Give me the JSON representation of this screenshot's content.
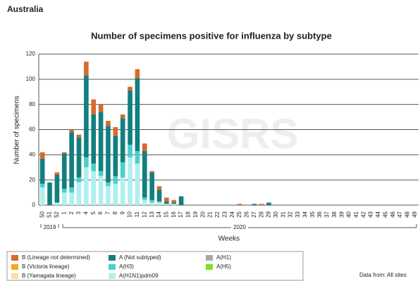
{
  "page_title": "Australia",
  "source_note": "Data from: All sites",
  "watermark": "GISRS",
  "chart_data": {
    "type": "stacked-bar",
    "title": "Number of specimens positive for influenza by subtype",
    "x_label": "Weeks",
    "y_label": "Number of specimens",
    "year_labels": [
      "2019",
      "2020"
    ],
    "categories": [
      "50",
      "51",
      "52",
      "1",
      "2",
      "3",
      "4",
      "5",
      "6",
      "7",
      "8",
      "9",
      "10",
      "11",
      "12",
      "13",
      "14",
      "15",
      "16",
      "17",
      "18",
      "19",
      "20",
      "21",
      "22",
      "23",
      "24",
      "25",
      "26",
      "27",
      "28",
      "29",
      "30",
      "31",
      "32",
      "33",
      "34",
      "35",
      "36",
      "37",
      "38",
      "39",
      "40",
      "41",
      "42",
      "43",
      "44",
      "45",
      "46",
      "47",
      "48",
      "49"
    ],
    "ylim": [
      0,
      120
    ],
    "yticks": [
      0,
      20,
      40,
      60,
      80,
      100,
      120
    ],
    "grid": true,
    "series": [
      {
        "name": "B (Lineage not determined)",
        "color": "#d9692a",
        "values": [
          5,
          0,
          2,
          1,
          2,
          2,
          11,
          12,
          6,
          4,
          7,
          3,
          3,
          7,
          6,
          1,
          3,
          3,
          2,
          0,
          0,
          0,
          0,
          0,
          0,
          0,
          0,
          1,
          0,
          0,
          1,
          0,
          0,
          0,
          0,
          0,
          0,
          0,
          0,
          0,
          0,
          0,
          0,
          0,
          0,
          0,
          0,
          0,
          0,
          0,
          0,
          0
        ]
      },
      {
        "name": "B (Victoria lineage)",
        "color": "#f5a81c",
        "values": [
          0,
          0,
          0,
          0,
          0,
          0,
          0,
          0,
          0,
          0,
          0,
          0,
          0,
          0,
          0,
          0,
          0,
          0,
          0,
          0,
          0,
          0,
          0,
          0,
          0,
          0,
          0,
          0,
          0,
          0,
          0,
          0,
          0,
          0,
          0,
          0,
          0,
          0,
          0,
          0,
          0,
          0,
          0,
          0,
          0,
          0,
          0,
          0,
          0,
          0,
          0,
          0
        ]
      },
      {
        "name": "B (Yamagata lineage)",
        "color": "#fddcaa",
        "values": [
          0,
          0,
          0,
          0,
          0,
          0,
          0,
          0,
          0,
          0,
          0,
          0,
          0,
          0,
          0,
          0,
          0,
          0,
          0,
          0,
          0,
          0,
          0,
          0,
          0,
          0,
          0,
          0,
          0,
          0,
          0,
          0,
          0,
          0,
          0,
          0,
          0,
          0,
          0,
          0,
          0,
          0,
          0,
          0,
          0,
          0,
          0,
          0,
          0,
          0,
          0,
          0
        ]
      },
      {
        "name": "A (Not subtyped)",
        "color": "#127f7f",
        "values": [
          20,
          18,
          22,
          28,
          44,
          32,
          65,
          39,
          47,
          45,
          32,
          35,
          43,
          58,
          37,
          22,
          9,
          2,
          1,
          7,
          0,
          0,
          0,
          0,
          0,
          0,
          0,
          0,
          0,
          1,
          0,
          2,
          0,
          0,
          0,
          0,
          0,
          0,
          0,
          0,
          0,
          0,
          0,
          0,
          0,
          0,
          0,
          0,
          0,
          0,
          0,
          0
        ]
      },
      {
        "name": "A(H3)",
        "color": "#4ccfcc",
        "values": [
          3,
          0,
          0,
          3,
          4,
          4,
          8,
          6,
          4,
          3,
          6,
          12,
          10,
          10,
          2,
          2,
          1,
          0,
          0,
          0,
          0,
          0,
          0,
          0,
          0,
          0,
          0,
          0,
          0,
          0,
          0,
          0,
          0,
          0,
          0,
          0,
          0,
          0,
          0,
          0,
          0,
          0,
          0,
          0,
          0,
          0,
          0,
          0,
          0,
          0,
          0,
          0
        ]
      },
      {
        "name": "A(H1N1)pdm09",
        "color": "#b0efef",
        "values": [
          14,
          0,
          2,
          10,
          10,
          18,
          30,
          27,
          23,
          15,
          17,
          22,
          38,
          33,
          4,
          2,
          2,
          1,
          1,
          0,
          0,
          0,
          0,
          0,
          0,
          0,
          0,
          0,
          0,
          0,
          0,
          0,
          0,
          0,
          0,
          0,
          0,
          0,
          0,
          0,
          0,
          0,
          0,
          0,
          0,
          0,
          0,
          0,
          0,
          0,
          0,
          0
        ]
      },
      {
        "name": "A(H1)",
        "color": "#a8a8a8",
        "values": [
          0,
          0,
          0,
          0,
          0,
          0,
          0,
          0,
          0,
          0,
          0,
          0,
          0,
          0,
          0,
          0,
          0,
          0,
          0,
          0,
          0,
          0,
          0,
          0,
          0,
          0,
          0,
          0,
          0,
          0,
          0,
          0,
          0,
          0,
          0,
          0,
          0,
          0,
          0,
          0,
          0,
          0,
          0,
          0,
          0,
          0,
          0,
          0,
          0,
          0,
          0,
          0
        ]
      },
      {
        "name": "A(H5)",
        "color": "#80e020",
        "values": [
          0,
          0,
          0,
          0,
          0,
          0,
          0,
          0,
          0,
          0,
          0,
          0,
          0,
          0,
          0,
          0,
          0,
          0,
          0,
          0,
          0,
          0,
          0,
          0,
          0,
          0,
          0,
          0,
          0,
          0,
          0,
          0,
          0,
          0,
          0,
          0,
          0,
          0,
          0,
          0,
          0,
          0,
          0,
          0,
          0,
          0,
          0,
          0,
          0,
          0,
          0,
          0
        ]
      }
    ]
  }
}
